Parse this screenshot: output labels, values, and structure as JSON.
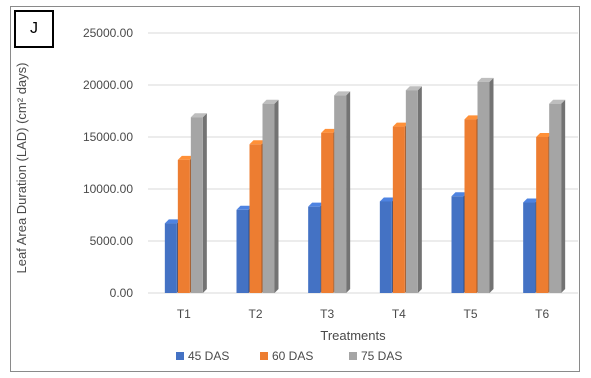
{
  "panel_label": "J",
  "chart_data": {
    "type": "bar",
    "title": "",
    "xlabel": "Treatments",
    "ylabel": "Leaf Area Duration (LAD) (cm² days)",
    "categories": [
      "T1",
      "T2",
      "T3",
      "T4",
      "T5",
      "T6"
    ],
    "ylim": [
      0,
      25000
    ],
    "yticks": [
      "0.00",
      "5000.00",
      "10000.00",
      "15000.00",
      "20000.00",
      "25000.00"
    ],
    "grid": true,
    "legend_position": "bottom",
    "series": [
      {
        "name": "45 DAS",
        "color": "#4472c4",
        "values": [
          6700,
          8000,
          8300,
          8800,
          9300,
          8700
        ]
      },
      {
        "name": "60 DAS",
        "color": "#ed7d31",
        "values": [
          12800,
          14300,
          15400,
          16000,
          16700,
          15000
        ]
      },
      {
        "name": "75 DAS",
        "color": "#a5a5a5",
        "values": [
          16900,
          18200,
          19000,
          19500,
          20300,
          18200
        ]
      }
    ]
  }
}
